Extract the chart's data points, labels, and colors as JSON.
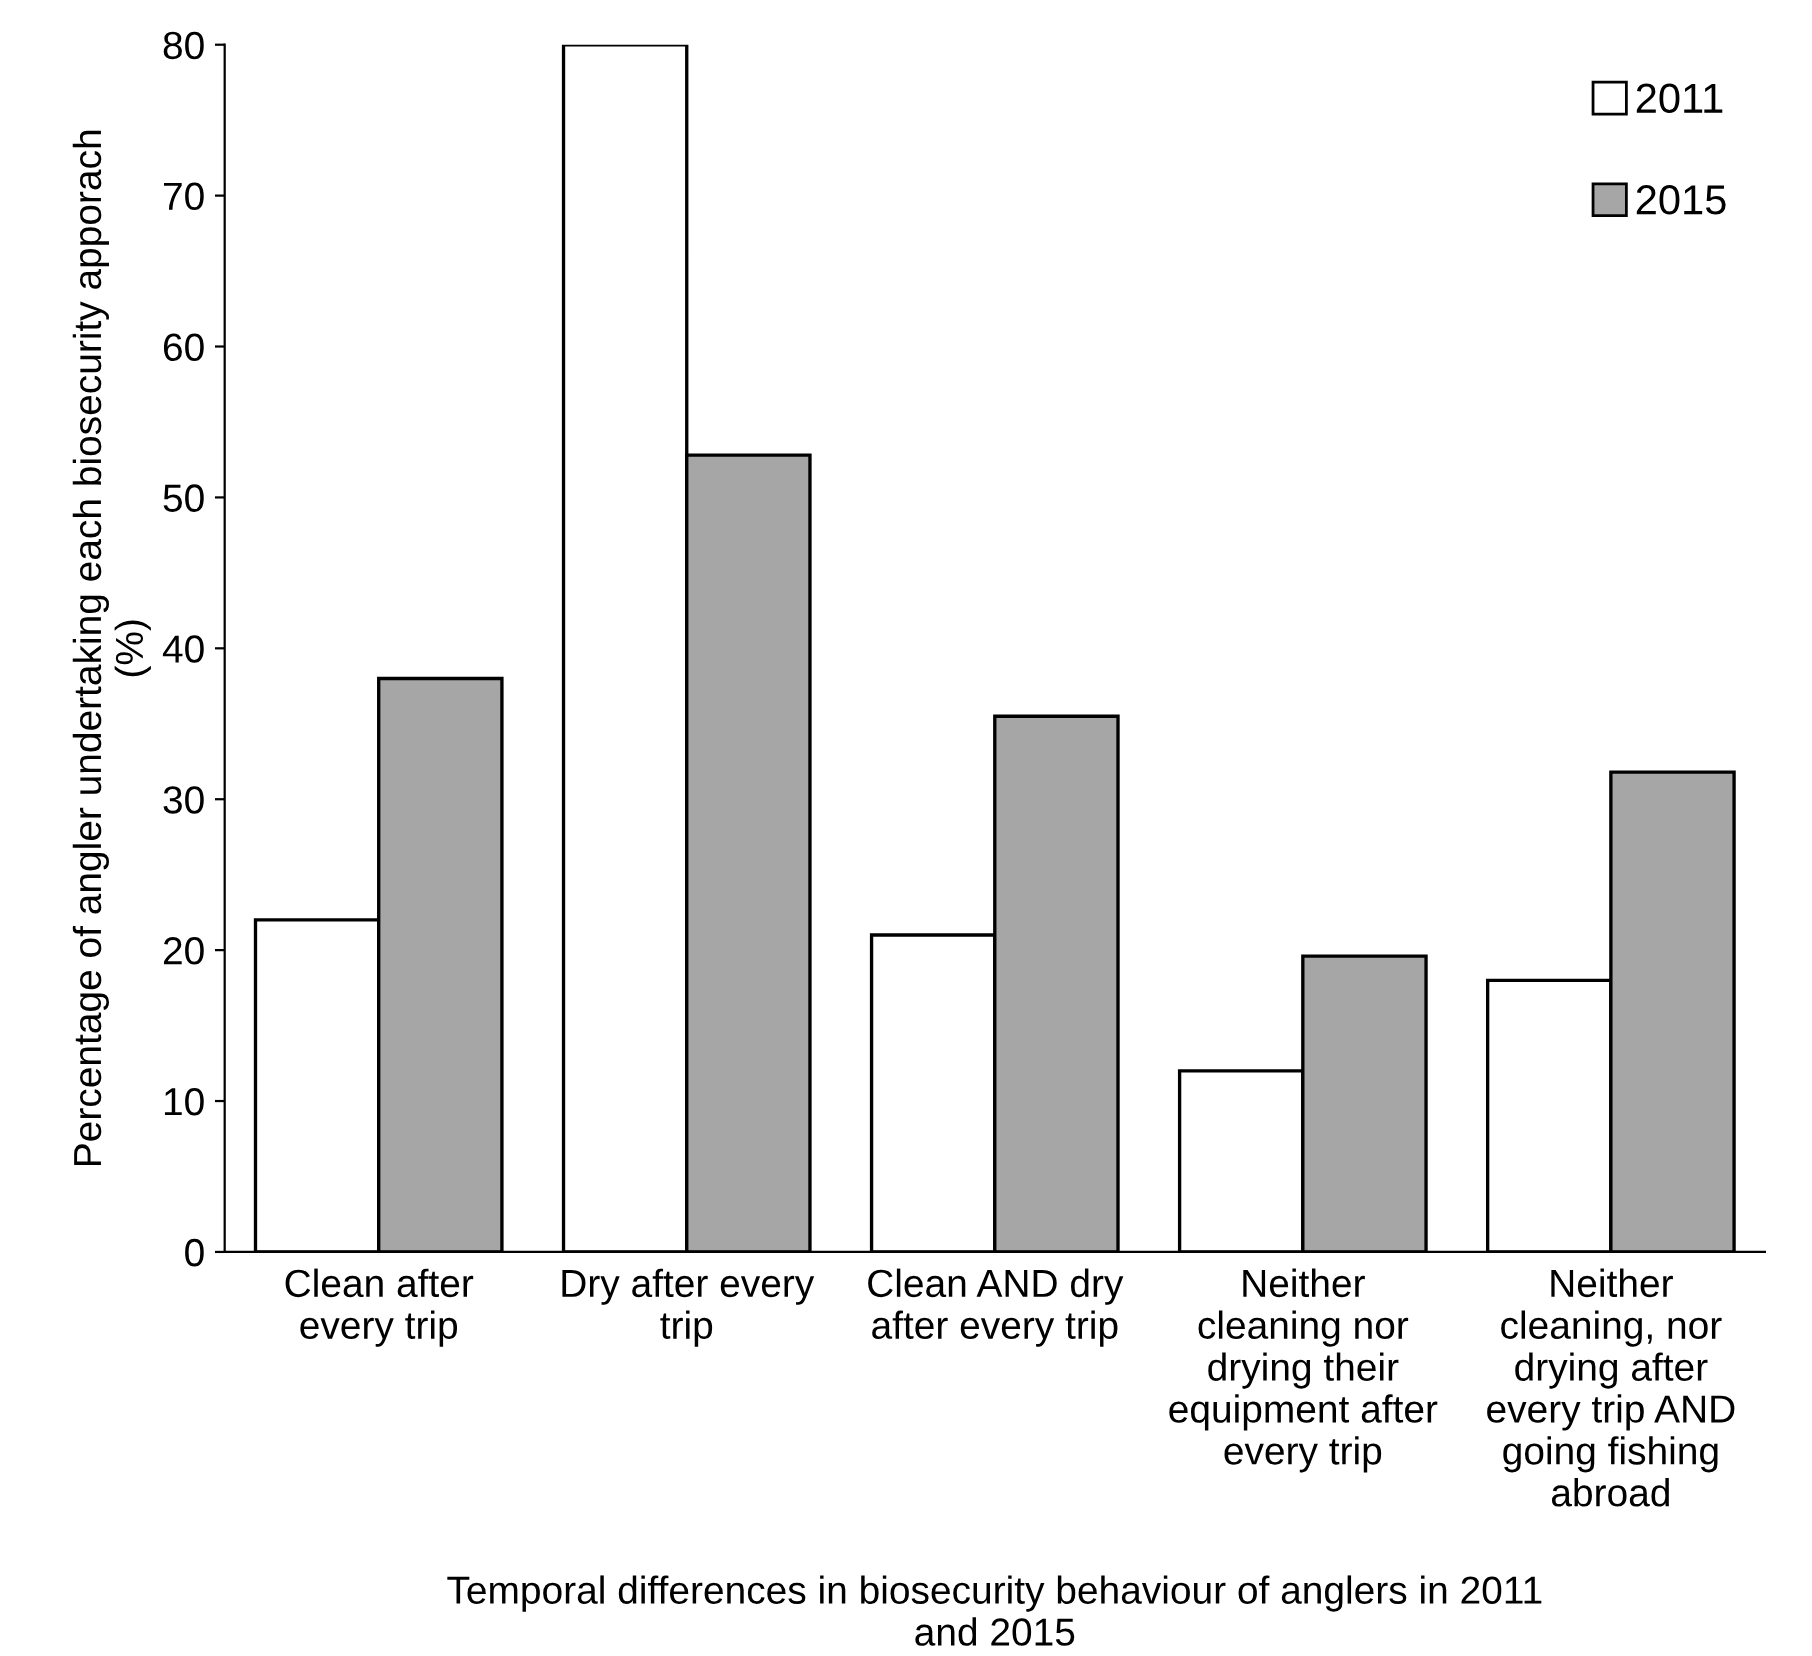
{
  "chart_data": {
    "type": "bar",
    "categories": [
      "Clean after\nevery trip",
      "Dry after every\ntrip",
      "Clean AND dry\nafter every trip",
      "Neither\ncleaning nor\ndrying their\nequipment after\nevery trip",
      "Neither\ncleaning, nor\ndrying after\nevery trip AND\ngoing fishing\nabroad"
    ],
    "series": [
      {
        "name": "2011",
        "color": "#ffffff",
        "values": [
          22,
          80,
          21,
          12,
          18
        ]
      },
      {
        "name": "2015",
        "color": "#a6a6a6",
        "values": [
          38,
          52.8,
          35.5,
          19.6,
          31.8
        ]
      }
    ],
    "xlabel": "Temporal differences in biosecurity behaviour of anglers in 2011\nand 2015",
    "ylabel": "Percentage of angler undertaking each biosecurity apporach\n(%)",
    "ylim": [
      0,
      80
    ],
    "yticks": [
      0,
      10,
      20,
      30,
      40,
      50,
      60,
      70,
      80
    ],
    "grid": false,
    "legend": "top right"
  }
}
